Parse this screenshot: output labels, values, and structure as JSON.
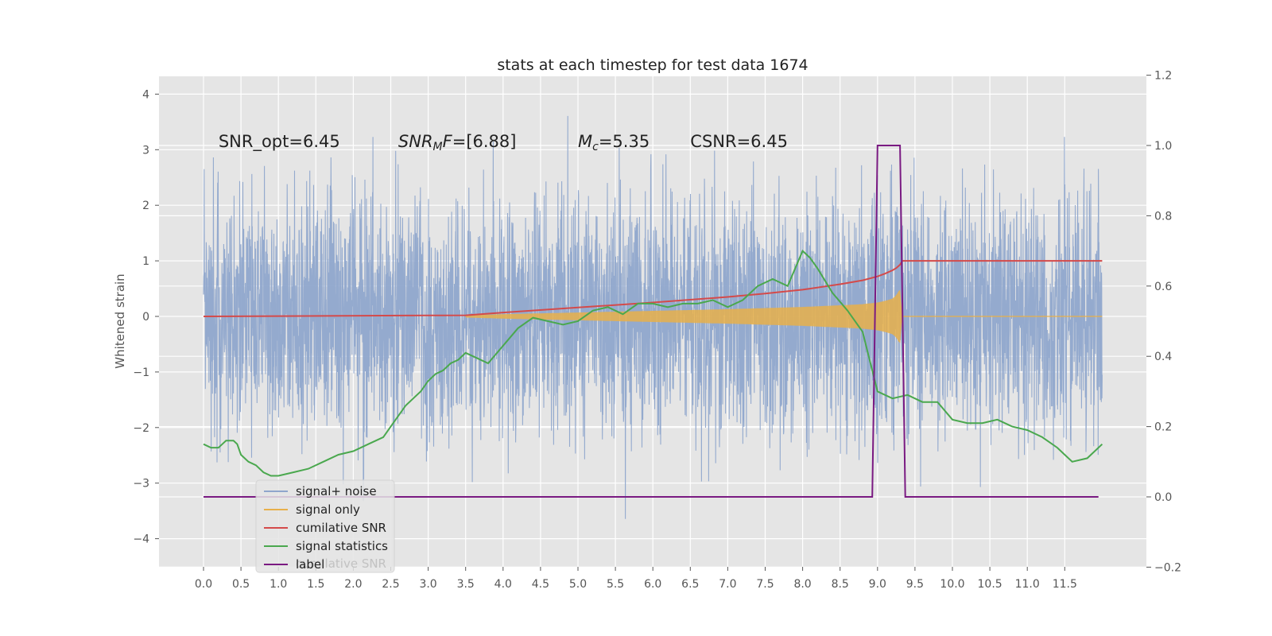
{
  "chart_data": {
    "type": "line",
    "title": "stats at each timestep for test data 1674",
    "xlabel": "",
    "ylabel": "Whitened strain",
    "y2label": "",
    "xlim": [
      -0.6,
      12.6
    ],
    "ylim": [
      -4.5,
      4.3
    ],
    "y2lim": [
      -0.2,
      1.2
    ],
    "x_ticks": [
      "0.0",
      "0.5",
      "1.0",
      "1.5",
      "2.0",
      "2.5",
      "3.0",
      "3.5",
      "4.0",
      "4.5",
      "5.0",
      "5.5",
      "6.0",
      "6.5",
      "7.0",
      "7.5",
      "8.0",
      "8.5",
      "9.0",
      "9.5",
      "10.0",
      "10.5",
      "11.0",
      "11.5"
    ],
    "y_ticks": [
      4,
      3,
      2,
      1,
      0,
      -1,
      -2,
      -3,
      -4
    ],
    "y_tick_labels": [
      "4",
      "3",
      "2",
      "1",
      "0",
      "−1",
      "−2",
      "−3",
      "−4"
    ],
    "y2_ticks": [
      1.2,
      1.0,
      0.8,
      0.6,
      0.4,
      0.2,
      0.0,
      -0.2
    ],
    "y2_tick_labels": [
      "1.2",
      "1.0",
      "0.8",
      "0.6",
      "0.4",
      "0.2",
      "0.0",
      "−0.2"
    ],
    "grid": true,
    "legend_position": "lower-left",
    "annotations": [
      {
        "label": "SNR_opt=6.45",
        "x": 0.2,
        "y": 3.15
      },
      {
        "label": "SNR_MF=[6.88]",
        "x": 2.6,
        "y": 3.15
      },
      {
        "label": "M_c=5.35",
        "x": 5.0,
        "y": 3.15
      },
      {
        "label": "CSNR=6.45",
        "x": 6.5,
        "y": 3.15
      }
    ],
    "series": [
      {
        "name": "signal+ noise",
        "axis": "left",
        "color": "#8fa6cc",
        "amplitude": 1.8,
        "x_range": [
          0.0,
          12.0
        ]
      },
      {
        "name": "signal only",
        "axis": "left",
        "color": "#e8b04a",
        "x": [
          3.5,
          4.0,
          5.0,
          6.0,
          7.0,
          7.5,
          8.0,
          8.5,
          8.8,
          9.0,
          9.1,
          9.2,
          9.25,
          9.3,
          9.33,
          12.0
        ],
        "envelope": [
          0.02,
          0.04,
          0.07,
          0.1,
          0.13,
          0.15,
          0.17,
          0.2,
          0.22,
          0.25,
          0.28,
          0.32,
          0.38,
          0.5,
          0.0,
          0.0
        ]
      },
      {
        "name": "cumilative SNR",
        "axis": "left",
        "color": "#d44a4a",
        "x": [
          0.0,
          3.5,
          4.0,
          5.0,
          6.0,
          7.0,
          7.5,
          8.0,
          8.5,
          8.8,
          9.0,
          9.1,
          9.2,
          9.25,
          9.3,
          9.33,
          12.0
        ],
        "y": [
          0.0,
          0.02,
          0.07,
          0.16,
          0.25,
          0.35,
          0.41,
          0.48,
          0.58,
          0.65,
          0.72,
          0.77,
          0.83,
          0.87,
          0.93,
          1.0,
          1.0
        ]
      },
      {
        "name": "signal statistics",
        "axis": "right",
        "color": "#4aa84e",
        "x": [
          0.0,
          0.1,
          0.2,
          0.25,
          0.3,
          0.4,
          0.45,
          0.5,
          0.6,
          0.7,
          0.8,
          0.9,
          1.0,
          1.2,
          1.4,
          1.6,
          1.8,
          2.0,
          2.2,
          2.4,
          2.5,
          2.6,
          2.7,
          2.8,
          2.9,
          3.0,
          3.1,
          3.2,
          3.3,
          3.4,
          3.5,
          3.6,
          3.8,
          4.0,
          4.2,
          4.4,
          4.6,
          4.8,
          5.0,
          5.2,
          5.4,
          5.6,
          5.8,
          6.0,
          6.2,
          6.4,
          6.6,
          6.8,
          7.0,
          7.2,
          7.4,
          7.6,
          7.8,
          8.0,
          8.1,
          8.2,
          8.4,
          8.6,
          8.8,
          9.0,
          9.2,
          9.4,
          9.6,
          9.8,
          10.0,
          10.2,
          10.4,
          10.6,
          10.8,
          11.0,
          11.2,
          11.4,
          11.5,
          11.6,
          11.8,
          12.0
        ],
        "y": [
          0.15,
          0.14,
          0.14,
          0.15,
          0.16,
          0.16,
          0.15,
          0.12,
          0.1,
          0.09,
          0.07,
          0.06,
          0.06,
          0.07,
          0.08,
          0.1,
          0.12,
          0.13,
          0.15,
          0.17,
          0.2,
          0.23,
          0.26,
          0.28,
          0.3,
          0.33,
          0.35,
          0.36,
          0.38,
          0.39,
          0.41,
          0.4,
          0.38,
          0.43,
          0.48,
          0.51,
          0.5,
          0.49,
          0.5,
          0.53,
          0.54,
          0.52,
          0.55,
          0.55,
          0.54,
          0.55,
          0.55,
          0.56,
          0.54,
          0.56,
          0.6,
          0.62,
          0.6,
          0.7,
          0.68,
          0.65,
          0.58,
          0.53,
          0.47,
          0.3,
          0.28,
          0.29,
          0.27,
          0.27,
          0.22,
          0.21,
          0.21,
          0.22,
          0.2,
          0.19,
          0.17,
          0.14,
          0.12,
          0.1,
          0.11,
          0.15
        ]
      },
      {
        "name": "label",
        "axis": "right",
        "color": "#7a1a82",
        "x": [
          0.0,
          8.93,
          9.0,
          9.3,
          9.37,
          11.95
        ],
        "y": [
          0.0,
          0.0,
          1.0,
          1.0,
          0.0,
          0.0
        ]
      }
    ],
    "legend_ghost_text": "cumilative SNR"
  }
}
